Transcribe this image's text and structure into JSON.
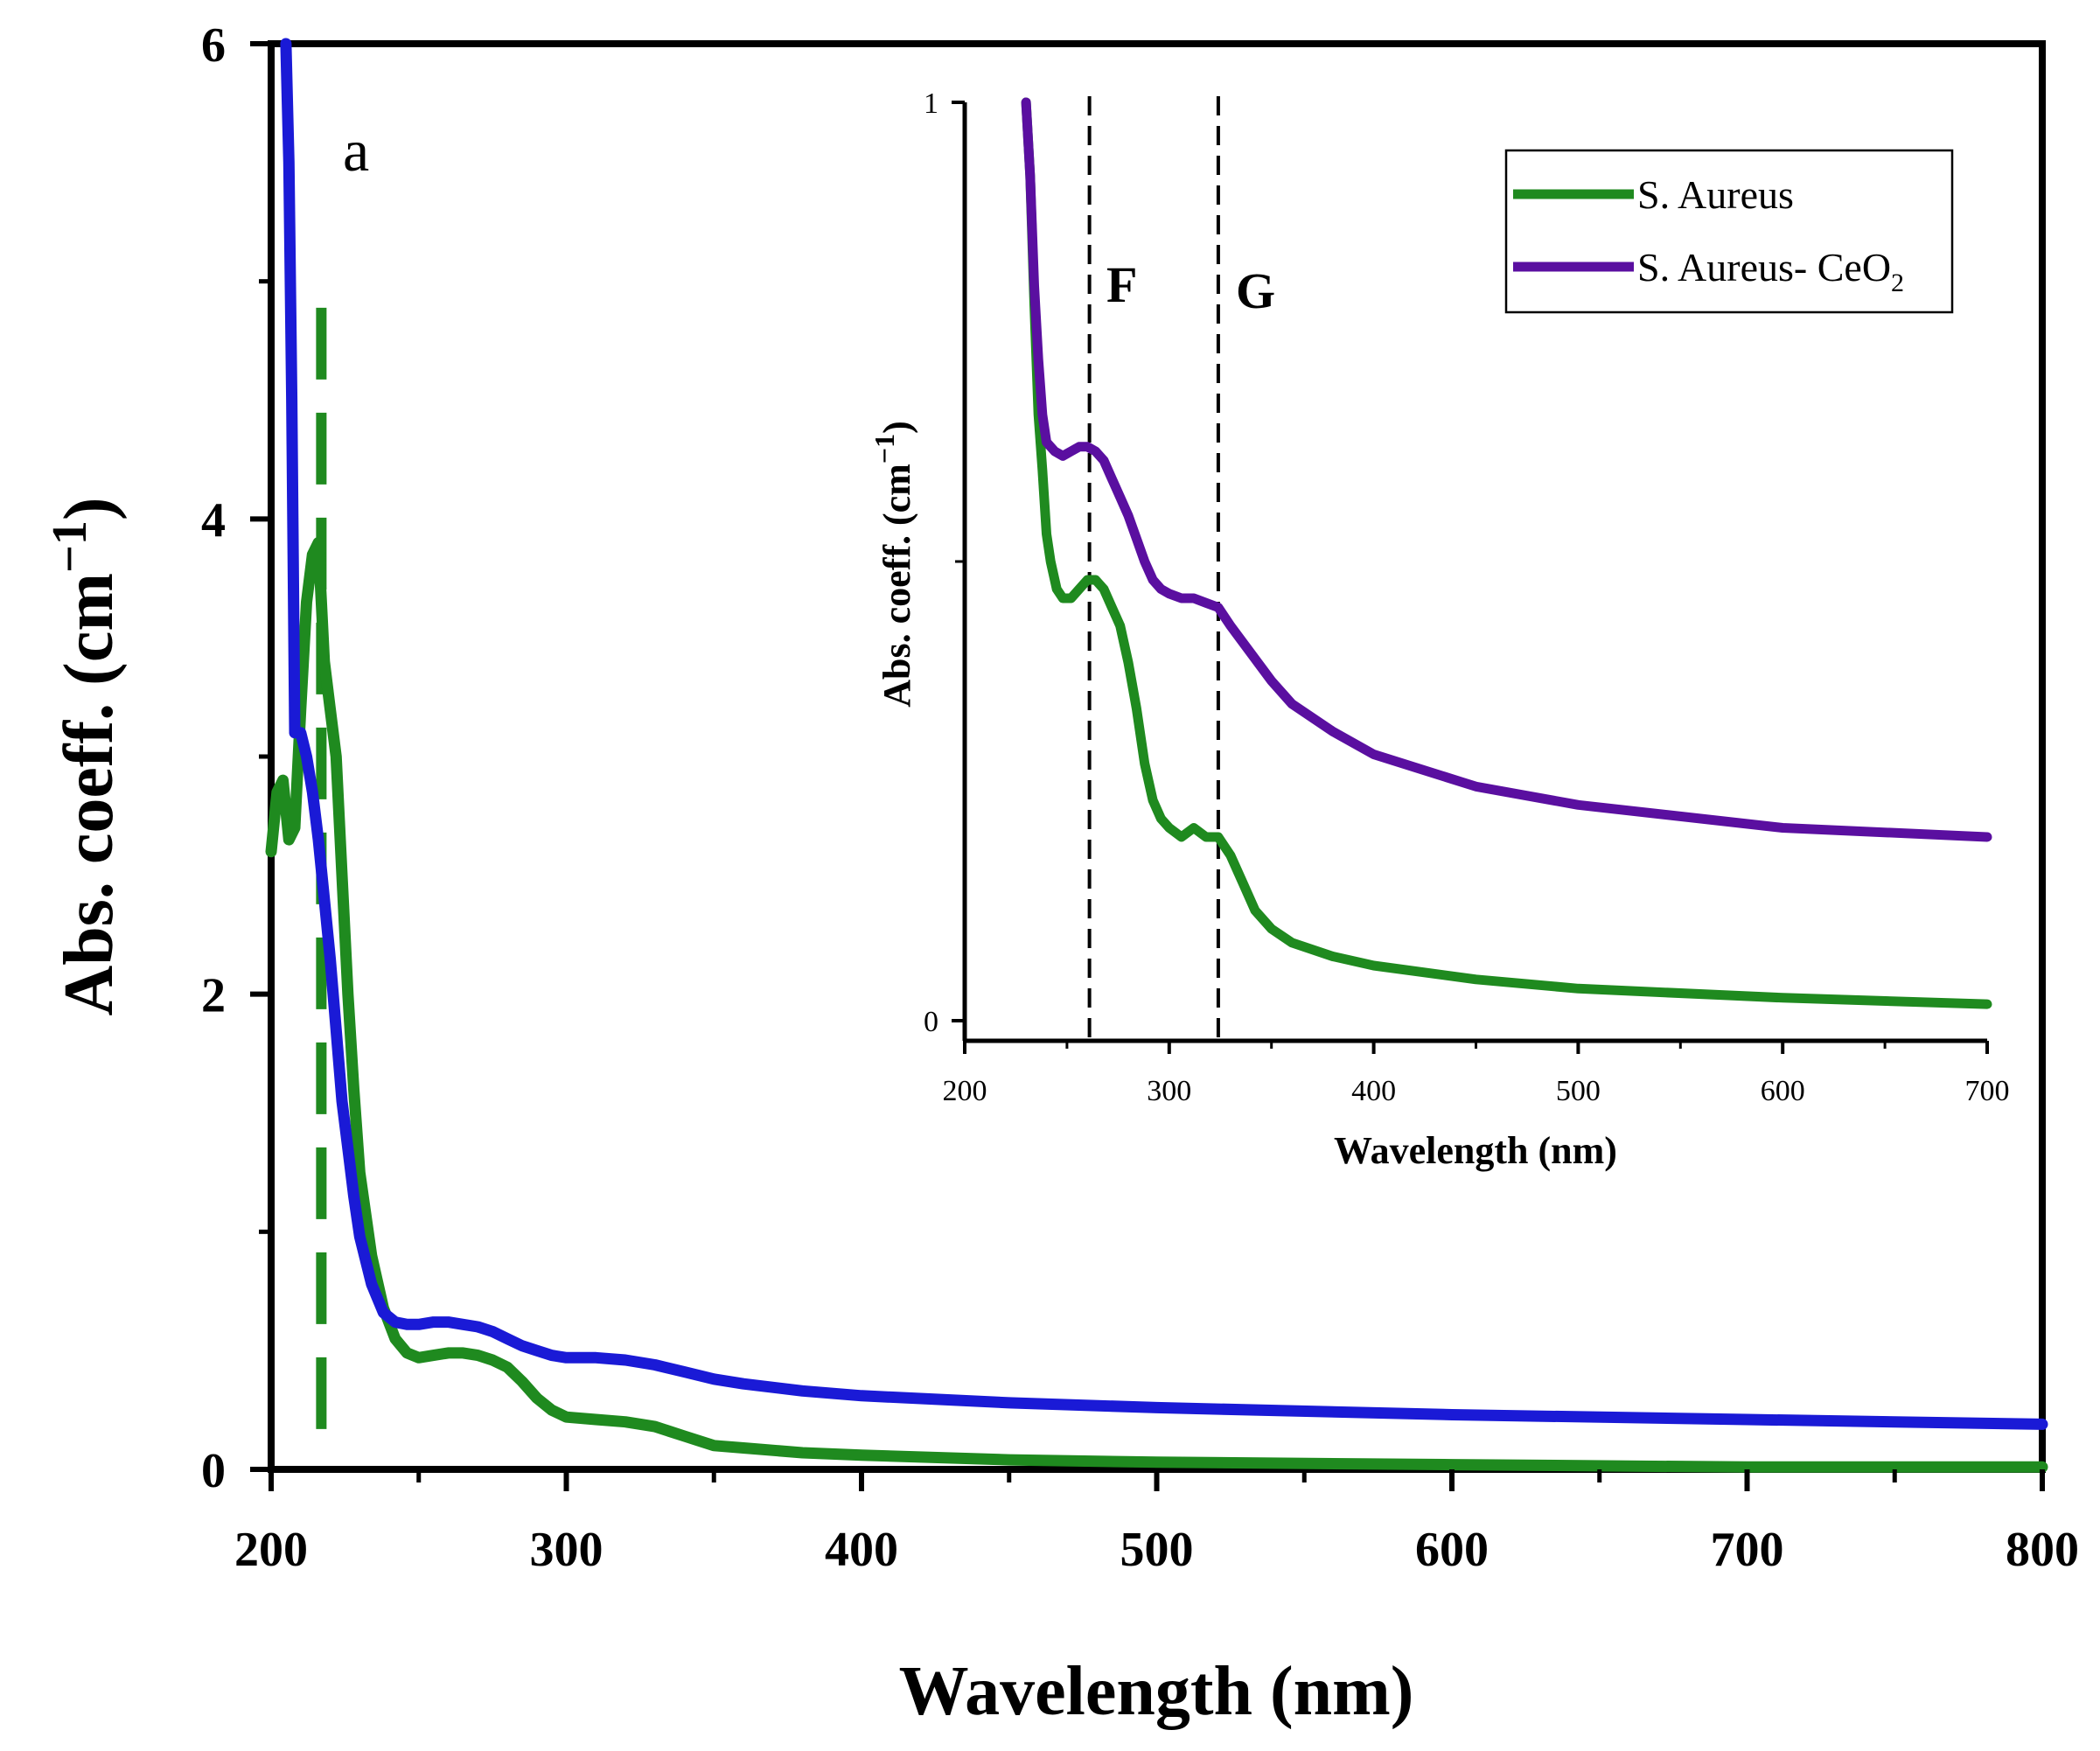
{
  "chart_data": [
    {
      "type": "line",
      "panel_label": "a",
      "xlabel": "Wavelength (nm)",
      "ylabel": "Abs. coeff. (cm",
      "ylabel_sup": "−1",
      "ylabel_close": ")",
      "xlim": [
        200,
        800
      ],
      "ylim": [
        0,
        6
      ],
      "xticks": [
        "200",
        "300",
        "400",
        "500",
        "600",
        "700",
        "800"
      ],
      "yticks": [
        "0",
        "2",
        "4",
        "6"
      ],
      "grid": false,
      "reference_line": {
        "x": 217,
        "y_range": [
          0.17,
          4.9
        ],
        "style": "dashed",
        "color": "#1f8a1f"
      },
      "series": [
        {
          "color": "#1f8a1f",
          "x": [
            200,
            202,
            204,
            206,
            208,
            210,
            212,
            214,
            216,
            218,
            220,
            222,
            224,
            226,
            228,
            230,
            234,
            238,
            242,
            246,
            250,
            255,
            260,
            265,
            270,
            275,
            280,
            285,
            290,
            295,
            300,
            310,
            320,
            330,
            340,
            350,
            360,
            380,
            400,
            450,
            500,
            600,
            700,
            800
          ],
          "y": [
            2.6,
            2.85,
            2.9,
            2.65,
            2.7,
            3.2,
            3.65,
            3.85,
            3.9,
            3.4,
            3.2,
            3.0,
            2.5,
            2.0,
            1.6,
            1.25,
            0.9,
            0.68,
            0.55,
            0.49,
            0.47,
            0.48,
            0.49,
            0.49,
            0.48,
            0.46,
            0.43,
            0.37,
            0.3,
            0.25,
            0.22,
            0.21,
            0.2,
            0.18,
            0.14,
            0.1,
            0.09,
            0.07,
            0.06,
            0.04,
            0.03,
            0.02,
            0.01,
            0.01
          ]
        },
        {
          "color": "#1a1ad6",
          "x": [
            205,
            206,
            207,
            208,
            210,
            212,
            214,
            216,
            218,
            220,
            222,
            224,
            226,
            228,
            230,
            234,
            238,
            242,
            246,
            250,
            255,
            260,
            265,
            270,
            275,
            280,
            285,
            290,
            295,
            300,
            310,
            320,
            330,
            340,
            350,
            360,
            380,
            400,
            450,
            500,
            600,
            700,
            800
          ],
          "y": [
            6.0,
            5.5,
            4.5,
            3.1,
            3.1,
            3.0,
            2.85,
            2.65,
            2.4,
            2.15,
            1.85,
            1.55,
            1.35,
            1.15,
            0.98,
            0.78,
            0.66,
            0.62,
            0.61,
            0.61,
            0.62,
            0.62,
            0.61,
            0.6,
            0.58,
            0.55,
            0.52,
            0.5,
            0.48,
            0.47,
            0.47,
            0.46,
            0.44,
            0.41,
            0.38,
            0.36,
            0.33,
            0.31,
            0.28,
            0.26,
            0.23,
            0.21,
            0.19
          ]
        }
      ]
    },
    {
      "type": "line",
      "xlabel": "Wavelength (nm)",
      "ylabel": "Abs. coeff. (cm",
      "ylabel_sup": "−1",
      "ylabel_close": ")",
      "xlim": [
        200,
        700
      ],
      "ylim": [
        0,
        1
      ],
      "xticks": [
        "200",
        "300",
        "400",
        "500",
        "600",
        "700"
      ],
      "yticks": [
        "0",
        "1"
      ],
      "grid": false,
      "legend_position": "top-right",
      "annotations": [
        {
          "label": "F",
          "x": 261
        },
        {
          "label": "G",
          "x": 324
        }
      ],
      "series": [
        {
          "name": "S. Aureus",
          "color": "#1f8a1f",
          "x": [
            230,
            232,
            234,
            236,
            238,
            240,
            242,
            245,
            248,
            252,
            256,
            260,
            264,
            268,
            272,
            276,
            280,
            284,
            288,
            292,
            296,
            300,
            306,
            312,
            318,
            324,
            330,
            336,
            342,
            350,
            360,
            380,
            400,
            450,
            500,
            600,
            700
          ],
          "y": [
            1.0,
            0.92,
            0.78,
            0.66,
            0.6,
            0.53,
            0.5,
            0.47,
            0.46,
            0.46,
            0.47,
            0.48,
            0.48,
            0.47,
            0.45,
            0.43,
            0.39,
            0.34,
            0.28,
            0.24,
            0.22,
            0.21,
            0.2,
            0.21,
            0.2,
            0.2,
            0.18,
            0.15,
            0.12,
            0.1,
            0.085,
            0.07,
            0.06,
            0.045,
            0.035,
            0.025,
            0.018
          ]
        },
        {
          "name": "S. Aureus- CeO",
          "name_sub": "2",
          "color": "#5a0fa0",
          "x": [
            230,
            232,
            234,
            236,
            238,
            240,
            244,
            248,
            252,
            256,
            260,
            264,
            268,
            272,
            276,
            280,
            284,
            288,
            292,
            296,
            300,
            306,
            312,
            318,
            324,
            330,
            340,
            350,
            360,
            380,
            400,
            450,
            500,
            600,
            700
          ],
          "y": [
            1.0,
            0.92,
            0.8,
            0.72,
            0.66,
            0.63,
            0.62,
            0.615,
            0.62,
            0.625,
            0.625,
            0.62,
            0.61,
            0.59,
            0.57,
            0.55,
            0.525,
            0.5,
            0.48,
            0.47,
            0.465,
            0.46,
            0.46,
            0.455,
            0.45,
            0.43,
            0.4,
            0.37,
            0.345,
            0.315,
            0.29,
            0.255,
            0.235,
            0.21,
            0.2
          ]
        }
      ]
    }
  ]
}
